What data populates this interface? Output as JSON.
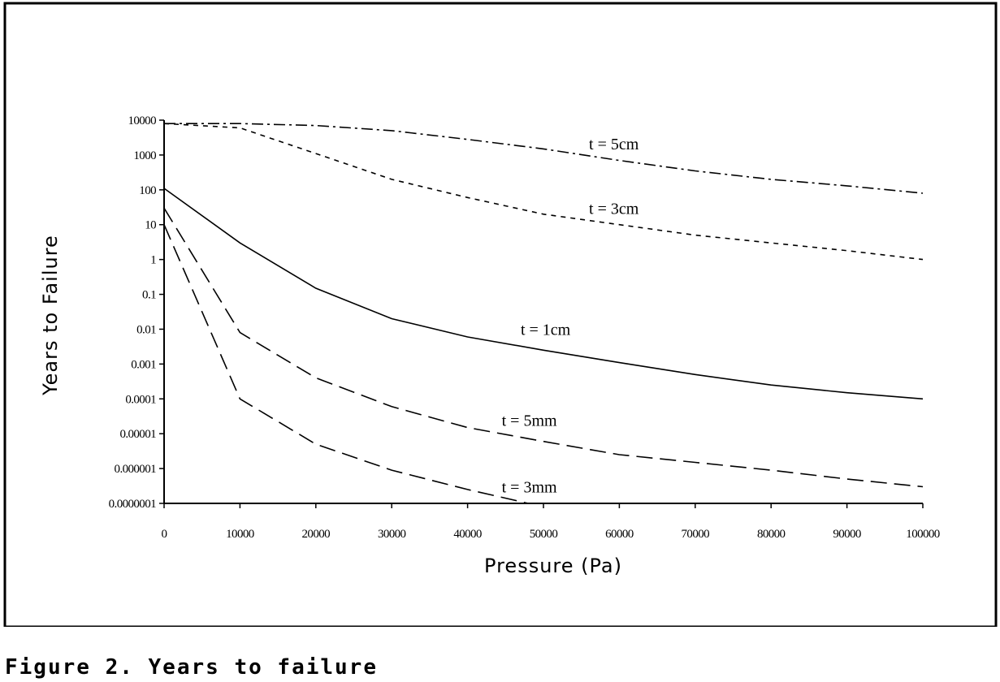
{
  "chart_data": {
    "type": "line",
    "xlabel": "Pressure (Pa)",
    "ylabel": "Years to Failure",
    "xlim": [
      0,
      100000
    ],
    "ylim": [
      1e-07,
      10000
    ],
    "yscale": "log",
    "grid": false,
    "legend": "none",
    "x_ticks": [
      "0",
      "10000",
      "20000",
      "30000",
      "40000",
      "50000",
      "60000",
      "70000",
      "80000",
      "90000",
      "100000"
    ],
    "y_ticks": [
      "10000",
      "1000",
      "100",
      "10",
      "1",
      "0.1",
      "0.01",
      "0.001",
      "0.0001",
      "0.00001",
      "0.000001",
      "0.0000001"
    ],
    "series": [
      {
        "name": "t = 5cm",
        "style": "dash-dot",
        "x": [
          0,
          10000,
          20000,
          30000,
          40000,
          50000,
          60000,
          70000,
          80000,
          90000,
          100000
        ],
        "values": [
          8000,
          8000,
          7000,
          5000,
          2800,
          1500,
          700,
          350,
          200,
          130,
          80
        ]
      },
      {
        "name": "t = 3cm",
        "style": "short-dash",
        "x": [
          0,
          10000,
          20000,
          30000,
          40000,
          50000,
          60000,
          70000,
          80000,
          90000,
          100000
        ],
        "values": [
          8000,
          6000,
          1100,
          200,
          60,
          20,
          10,
          5,
          3,
          1.8,
          1
        ]
      },
      {
        "name": "t =  1cm",
        "style": "solid",
        "x": [
          0,
          10000,
          20000,
          30000,
          40000,
          50000,
          60000,
          70000,
          80000,
          90000,
          100000
        ],
        "values": [
          110,
          3,
          0.15,
          0.02,
          0.006,
          0.0025,
          0.0011,
          0.0005,
          0.00025,
          0.00015,
          0.0001
        ]
      },
      {
        "name": "t = 5mm",
        "style": "long-dash",
        "x": [
          0,
          10000,
          20000,
          30000,
          40000,
          50000,
          60000,
          70000,
          80000,
          90000,
          100000
        ],
        "values": [
          30,
          0.008,
          0.0004,
          6e-05,
          1.5e-05,
          6e-06,
          2.5e-06,
          1.5e-06,
          9e-07,
          5e-07,
          3e-07
        ]
      },
      {
        "name": "t = 3mm",
        "style": "long-dash",
        "x": [
          0,
          10000,
          20000,
          30000,
          40000,
          48000
        ],
        "values": [
          10,
          0.0001,
          5e-06,
          9e-07,
          2.5e-07,
          1e-07
        ]
      }
    ]
  },
  "caption": "Figure 2. Years to failure"
}
